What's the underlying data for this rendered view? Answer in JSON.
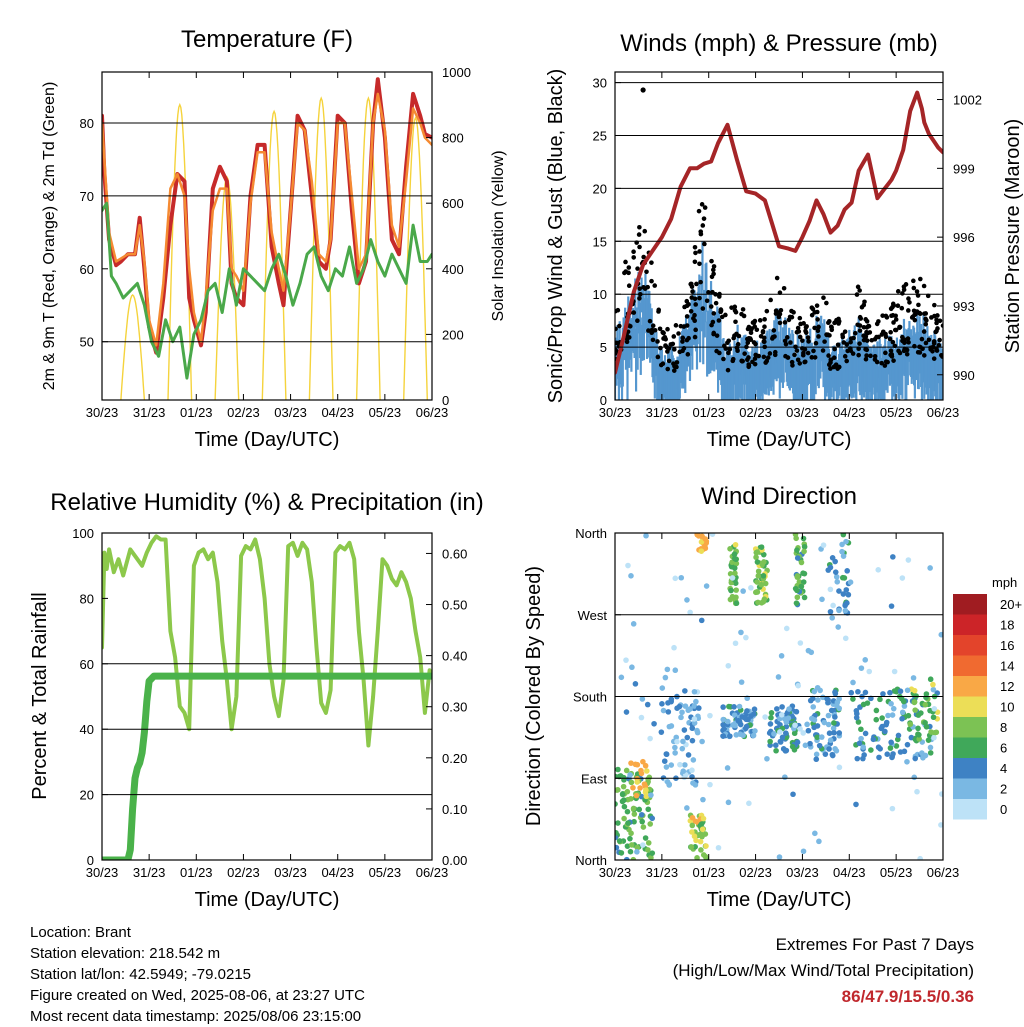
{
  "info": {
    "location": "Location: Brant",
    "elevation": "Station elevation: 218.542 m",
    "latlon": "Station lat/lon: 42.5949; -79.0215",
    "created": "Figure created on Wed, 2025-08-06, at 23:27 UTC",
    "recent": "Most recent data timestamp: 2025/08/06 23:15:00"
  },
  "extremes": {
    "title": "Extremes For Past 7 Days",
    "subtitle": "(High/Low/Max Wind/Total Precipitation)",
    "values": "86/47.9/15.5/0.36"
  },
  "colors": {
    "temp_red": "#c62a2a",
    "temp_orange": "#f58a32",
    "dewpoint_green": "#4aa84a",
    "solar_yellow": "#f5d33c",
    "wind_blue": "#5597cf",
    "gust_black": "#000000",
    "pressure_maroon": "#a52527",
    "rh_lightgreen": "#8cc84b",
    "precip_green": "#4ab24a"
  },
  "chart_data": [
    {
      "type": "line",
      "title": "Temperature (F)",
      "xlabel": "Time (Day/UTC)",
      "ylabel": "2m & 9m T (Red, Orange) & 2m Td (Green)",
      "y2label": "Solar Insolation (Yellow)",
      "x_ticks": [
        "30/23",
        "31/23",
        "01/23",
        "02/23",
        "03/23",
        "04/23",
        "05/23",
        "06/23"
      ],
      "ylim": [
        42,
        87
      ],
      "y_ticks": [
        50,
        60,
        70,
        80
      ],
      "y2lim": [
        0,
        1000
      ],
      "y2_ticks": [
        0,
        200,
        400,
        600,
        800,
        1000
      ],
      "grid_y": [
        50,
        70,
        80
      ],
      "series": [
        {
          "color": "#c62a2a",
          "width": 4,
          "x": [
            0,
            0.05,
            0.15,
            0.3,
            0.4,
            0.55,
            0.7,
            0.8,
            0.9,
            1.0,
            1.15,
            1.3,
            1.45,
            1.6,
            1.75,
            1.85,
            1.95,
            2.1,
            2.2,
            2.35,
            2.5,
            2.65,
            2.75,
            2.85,
            3.0,
            3.15,
            3.3,
            3.45,
            3.6,
            3.75,
            3.85,
            4.0,
            4.15,
            4.3,
            4.45,
            4.6,
            4.75,
            4.85,
            5.0,
            5.15,
            5.3,
            5.45,
            5.6,
            5.75,
            5.85,
            6.0,
            6.15,
            6.3,
            6.45,
            6.6,
            6.75,
            6.85,
            7.0
          ],
          "y": [
            81,
            73,
            64,
            60.5,
            61,
            62,
            62,
            67,
            60,
            52,
            48.5,
            56,
            66,
            73,
            72,
            56,
            53,
            49.5,
            54,
            71,
            74,
            72,
            58,
            56,
            55,
            70,
            77,
            77,
            63,
            58,
            55,
            68,
            81,
            79,
            70,
            61,
            60,
            64,
            81,
            80,
            68,
            58,
            61,
            80,
            86,
            78,
            64,
            62,
            74,
            84,
            81,
            78.5,
            78
          ]
        },
        {
          "color": "#f58a32",
          "width": 2.5,
          "x": [
            0,
            0.15,
            0.3,
            0.55,
            0.7,
            0.8,
            0.9,
            1.0,
            1.15,
            1.3,
            1.45,
            1.6,
            1.75,
            1.85,
            1.95,
            2.1,
            2.2,
            2.35,
            2.5,
            2.65,
            2.75,
            2.85,
            3.0,
            3.15,
            3.3,
            3.45,
            3.6,
            3.75,
            3.85,
            4.0,
            4.15,
            4.3,
            4.45,
            4.6,
            4.75,
            4.85,
            5.0,
            5.15,
            5.3,
            5.45,
            5.6,
            5.75,
            5.85,
            6.0,
            6.15,
            6.3,
            6.45,
            6.6,
            6.75,
            6.85,
            7.0
          ],
          "y": [
            80,
            65,
            61,
            62,
            62,
            66,
            61,
            53,
            49.5,
            58,
            71,
            73,
            70,
            60,
            54,
            50,
            56,
            68,
            71,
            71,
            60,
            59,
            57,
            69,
            76,
            76,
            65,
            60,
            57,
            68,
            80,
            79,
            72,
            62,
            61,
            64,
            80,
            80,
            70,
            60,
            62,
            80,
            84,
            79,
            66,
            63,
            72,
            82,
            80,
            78,
            77
          ]
        },
        {
          "color": "#4aa84a",
          "width": 3,
          "x": [
            0,
            0.1,
            0.2,
            0.3,
            0.45,
            0.6,
            0.75,
            0.9,
            1.05,
            1.2,
            1.35,
            1.5,
            1.65,
            1.8,
            1.95,
            2.1,
            2.25,
            2.4,
            2.55,
            2.7,
            2.85,
            3.0,
            3.15,
            3.3,
            3.45,
            3.6,
            3.75,
            3.9,
            4.05,
            4.2,
            4.35,
            4.5,
            4.65,
            4.8,
            4.95,
            5.1,
            5.25,
            5.4,
            5.55,
            5.7,
            5.85,
            6.0,
            6.15,
            6.3,
            6.45,
            6.6,
            6.75,
            6.9,
            7.0
          ],
          "y": [
            68,
            69,
            59,
            58,
            56,
            57,
            58,
            55,
            50,
            48,
            53,
            50,
            52,
            45,
            51,
            53,
            57,
            58,
            54,
            60,
            55,
            60,
            59,
            58,
            57,
            60,
            62,
            59,
            55,
            58,
            62,
            63,
            59,
            57,
            60,
            59,
            63,
            58,
            60,
            64,
            61,
            59,
            62,
            60,
            58,
            66,
            61,
            61,
            62
          ]
        }
      ],
      "solar_days": [
        {
          "start": 0.4,
          "peak": 1.6,
          "end": 0.9
        },
        {
          "start": 1.4,
          "peak": 4.5,
          "end": 1.9
        },
        {
          "start": 2.4,
          "peak": 3.4,
          "end": 2.9
        },
        {
          "start": 3.4,
          "peak": 4.4,
          "end": 3.9
        },
        {
          "start": 4.4,
          "peak": 4.6,
          "end": 4.9
        },
        {
          "start": 5.4,
          "peak": 4.6,
          "end": 5.9
        },
        {
          "start": 6.4,
          "peak": 4.3,
          "end": 6.9
        }
      ]
    },
    {
      "type": "line",
      "title": "Winds (mph) & Pressure (mb)",
      "xlabel": "Time (Day/UTC)",
      "ylabel": "Sonic/Prop Wind & Gust (Blue, Black)",
      "y2label": "Station Pressure (Maroon)",
      "x_ticks": [
        "30/23",
        "31/23",
        "01/23",
        "02/23",
        "03/23",
        "04/23",
        "05/23",
        "06/23"
      ],
      "ylim": [
        0,
        31
      ],
      "y_ticks": [
        0,
        5,
        10,
        15,
        20,
        25,
        30
      ],
      "y2lim": [
        988.9,
        1003.2
      ],
      "y2_ticks": [
        990,
        993,
        996,
        999,
        1002
      ],
      "grid_y": [
        5,
        10,
        15,
        20,
        25,
        30
      ],
      "wind_envelope": {
        "x": [
          0,
          0.3,
          0.6,
          1.0,
          1.3,
          1.6,
          1.85,
          2.1,
          2.4,
          2.6,
          2.9,
          3.2,
          3.5,
          3.8,
          4.1,
          4.4,
          4.6,
          4.9,
          5.2,
          5.5,
          5.8,
          6.1,
          6.4,
          6.7,
          7.0
        ],
        "y": [
          5,
          8,
          10,
          4,
          4,
          7,
          12,
          8,
          4,
          6,
          4,
          5,
          7,
          5,
          5,
          7,
          4,
          5,
          6,
          4,
          5,
          6,
          7,
          6,
          4
        ]
      },
      "gust_envelope": {
        "x": [
          0,
          0.3,
          0.6,
          1.0,
          1.3,
          1.6,
          1.85,
          2.1,
          2.4,
          2.6,
          2.9,
          3.2,
          3.5,
          3.8,
          4.1,
          4.4,
          4.6,
          4.9,
          5.2,
          5.5,
          5.8,
          6.1,
          6.4,
          6.7,
          7.0
        ],
        "y": [
          7,
          13,
          15,
          6,
          6,
          10,
          17,
          11,
          6,
          9,
          6,
          7,
          10,
          7,
          7,
          10,
          6,
          7,
          9,
          6,
          7,
          9,
          10,
          9,
          6
        ]
      },
      "gust_outlier": {
        "x": 0.6,
        "y": 29.3
      },
      "series": [
        {
          "name_hidden": true,
          "color": "#a52527",
          "width": 4,
          "x": [
            0,
            0.2,
            0.4,
            0.6,
            0.8,
            1.0,
            1.2,
            1.4,
            1.6,
            1.75,
            1.9,
            2.05,
            2.2,
            2.4,
            2.6,
            2.8,
            3.0,
            3.2,
            3.35,
            3.5,
            3.7,
            3.85,
            4.0,
            4.15,
            4.3,
            4.45,
            4.6,
            4.75,
            4.9,
            5.05,
            5.2,
            5.4,
            5.6,
            5.75,
            5.9,
            6.0,
            6.15,
            6.3,
            6.45,
            6.55,
            6.6,
            6.7,
            6.8,
            6.9,
            7.0
          ],
          "y": [
            990.1,
            991.8,
            993.6,
            994.8,
            995.4,
            996.0,
            996.8,
            998.2,
            999.0,
            999.0,
            999.2,
            999.3,
            1000.1,
            1000.9,
            999.4,
            998.0,
            997.9,
            997.6,
            996.6,
            995.6,
            995.5,
            995.4,
            996.0,
            996.7,
            997.6,
            997.0,
            996.2,
            996.5,
            997.2,
            997.5,
            998.9,
            999.6,
            997.7,
            998.1,
            998.5,
            998.9,
            999.8,
            1001.5,
            1002.3,
            1001.6,
            1001.0,
            1000.5,
            1000.2,
            999.9,
            999.7
          ]
        }
      ]
    },
    {
      "type": "line",
      "title": "Relative Humidity (%) & Precipitation (in)",
      "xlabel": "Time (Day/UTC)",
      "ylabel": "Percent & Total Rainfall",
      "x_ticks": [
        "30/23",
        "31/23",
        "01/23",
        "02/23",
        "03/23",
        "04/23",
        "05/23",
        "06/23"
      ],
      "ylim": [
        0,
        100
      ],
      "y_ticks": [
        0,
        20,
        40,
        60,
        80,
        100
      ],
      "y2lim": [
        0,
        0.64
      ],
      "y2_ticks": [
        0.0,
        0.1,
        0.2,
        0.3,
        0.4,
        0.5,
        0.6
      ],
      "grid_y": [
        20,
        40,
        60
      ],
      "series": [
        {
          "color": "#8cc84b",
          "width": 4,
          "x": [
            0,
            0.05,
            0.1,
            0.15,
            0.25,
            0.35,
            0.45,
            0.6,
            0.75,
            0.85,
            0.95,
            1.05,
            1.15,
            1.25,
            1.35,
            1.45,
            1.55,
            1.65,
            1.75,
            1.85,
            1.95,
            2.05,
            2.15,
            2.25,
            2.35,
            2.45,
            2.55,
            2.65,
            2.75,
            2.85,
            2.95,
            3.05,
            3.15,
            3.25,
            3.35,
            3.45,
            3.55,
            3.65,
            3.75,
            3.85,
            3.95,
            4.05,
            4.15,
            4.25,
            4.35,
            4.45,
            4.55,
            4.65,
            4.75,
            4.85,
            4.95,
            5.05,
            5.15,
            5.25,
            5.35,
            5.45,
            5.55,
            5.65,
            5.75,
            5.85,
            5.95,
            6.05,
            6.15,
            6.25,
            6.35,
            6.45,
            6.55,
            6.65,
            6.75,
            6.85,
            6.95,
            7.0
          ],
          "y": [
            65,
            94,
            89,
            95,
            88,
            92,
            87,
            95,
            92,
            90,
            94,
            97,
            99,
            98,
            98,
            70,
            62,
            47,
            45,
            40,
            90,
            94,
            95,
            92,
            94,
            85,
            67,
            55,
            40,
            50,
            93,
            96,
            95,
            98,
            92,
            80,
            60,
            50,
            44,
            55,
            96,
            97,
            93,
            97,
            95,
            85,
            65,
            48,
            45,
            52,
            94,
            96,
            95,
            97,
            92,
            70,
            55,
            35,
            50,
            70,
            92,
            90,
            86,
            84,
            88,
            85,
            80,
            70,
            62,
            45,
            58,
            56
          ]
        },
        {
          "color": "#4ab24a",
          "width": 7,
          "x": [
            0,
            0.5,
            0.55,
            0.6,
            0.65,
            0.7,
            0.75,
            0.8,
            0.85,
            0.9,
            0.95,
            1.0,
            1.1,
            1.2,
            7.0
          ],
          "y": [
            0,
            0,
            0,
            0.02,
            0.1,
            0.16,
            0.18,
            0.19,
            0.21,
            0.25,
            0.31,
            0.35,
            0.36,
            0.36,
            0.36
          ]
        }
      ]
    },
    {
      "type": "scatter",
      "title": "Wind Direction",
      "xlabel": "Time (Day/UTC)",
      "ylabel": "Direction (Colored By Speed)",
      "x_ticks": [
        "30/23",
        "31/23",
        "01/23",
        "02/23",
        "03/23",
        "04/23",
        "05/23",
        "06/23"
      ],
      "y_ticks": [
        "North",
        "East",
        "South",
        "West",
        "North"
      ],
      "ylim": [
        0,
        360
      ],
      "grid_y": [
        90,
        180,
        270,
        360
      ],
      "legend_title": "mph",
      "legend": [
        {
          "label": "20+",
          "color": "#a01c21"
        },
        {
          "label": "18",
          "color": "#cc2428"
        },
        {
          "label": "16",
          "color": "#e3442b"
        },
        {
          "label": "14",
          "color": "#f06a30"
        },
        {
          "label": "12",
          "color": "#f9a846"
        },
        {
          "label": "10",
          "color": "#ecde57"
        },
        {
          "label": "8",
          "color": "#7cc254"
        },
        {
          "label": "6",
          "color": "#40a85a"
        },
        {
          "label": "4",
          "color": "#3e82c4"
        },
        {
          "label": "2",
          "color": "#7ab8e3"
        },
        {
          "label": "0",
          "color": "#bde2f7"
        }
      ],
      "clusters": [
        {
          "x0": 0.0,
          "x1": 0.8,
          "y0": 0,
          "y1": 100,
          "speed": 6,
          "n": 90
        },
        {
          "x0": 0.3,
          "x1": 0.7,
          "y0": 70,
          "y1": 110,
          "speed": 10,
          "n": 20
        },
        {
          "x0": 1.0,
          "x1": 1.8,
          "y0": 80,
          "y1": 190,
          "speed": 2,
          "n": 70
        },
        {
          "x0": 1.6,
          "x1": 1.95,
          "y0": 0,
          "y1": 50,
          "speed": 8,
          "n": 40
        },
        {
          "x0": 1.75,
          "x1": 1.95,
          "y0": 340,
          "y1": 360,
          "speed": 11,
          "n": 15
        },
        {
          "x0": 2.3,
          "x1": 3.0,
          "y0": 135,
          "y1": 170,
          "speed": 3,
          "n": 70
        },
        {
          "x0": 2.45,
          "x1": 2.6,
          "y0": 280,
          "y1": 350,
          "speed": 7,
          "n": 35
        },
        {
          "x0": 3.0,
          "x1": 3.25,
          "y0": 280,
          "y1": 345,
          "speed": 7,
          "n": 45
        },
        {
          "x0": 3.3,
          "x1": 3.9,
          "y0": 120,
          "y1": 170,
          "speed": 4,
          "n": 65
        },
        {
          "x0": 3.85,
          "x1": 4.05,
          "y0": 280,
          "y1": 360,
          "speed": 6,
          "n": 35
        },
        {
          "x0": 4.1,
          "x1": 4.8,
          "y0": 110,
          "y1": 190,
          "speed": 3,
          "n": 70
        },
        {
          "x0": 4.55,
          "x1": 5.0,
          "y0": 270,
          "y1": 360,
          "speed": 3,
          "n": 30
        },
        {
          "x0": 5.0,
          "x1": 6.9,
          "y0": 110,
          "y1": 190,
          "speed": 4,
          "n": 110
        },
        {
          "x0": 6.3,
          "x1": 6.9,
          "y0": 130,
          "y1": 200,
          "speed": 7,
          "n": 30
        },
        {
          "x0": 0.0,
          "x1": 7.0,
          "y0": 0,
          "y1": 360,
          "speed": 1,
          "n": 120
        }
      ]
    }
  ]
}
